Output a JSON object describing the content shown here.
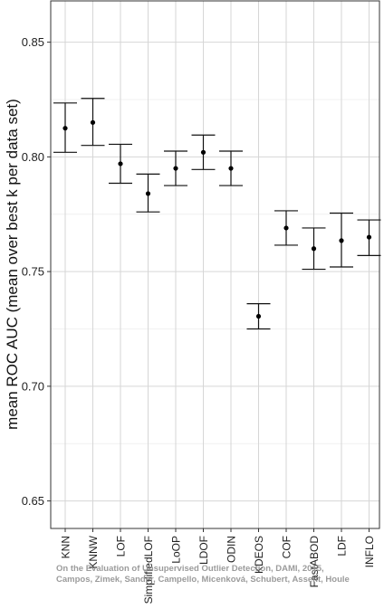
{
  "chart_data": {
    "type": "scatter",
    "ylabel": "mean ROC AUC (mean over best k per data set)",
    "ylim": [
      0.638,
      0.868
    ],
    "yticks": [
      "0.65",
      "0.70",
      "0.75",
      "0.80",
      "0.85"
    ],
    "grid": true,
    "categories": [
      "KNN",
      "KNNW",
      "LOF",
      "SimplifiedLOF",
      "LoOP",
      "LDOF",
      "ODIN",
      "KDEOS",
      "COF",
      "FastABOD",
      "LDF",
      "INFLO"
    ],
    "points": [
      {
        "label": "KNN",
        "mean": 0.8125,
        "lower": 0.802,
        "upper": 0.8235
      },
      {
        "label": "KNNW",
        "mean": 0.815,
        "lower": 0.805,
        "upper": 0.8255
      },
      {
        "label": "LOF",
        "mean": 0.797,
        "lower": 0.7885,
        "upper": 0.8055
      },
      {
        "label": "SimplifiedLOF",
        "mean": 0.784,
        "lower": 0.776,
        "upper": 0.7925
      },
      {
        "label": "LoOP",
        "mean": 0.795,
        "lower": 0.7875,
        "upper": 0.8025
      },
      {
        "label": "LDOF",
        "mean": 0.802,
        "lower": 0.7945,
        "upper": 0.8095
      },
      {
        "label": "ODIN",
        "mean": 0.795,
        "lower": 0.7875,
        "upper": 0.8025
      },
      {
        "label": "KDEOS",
        "mean": 0.7305,
        "lower": 0.725,
        "upper": 0.736
      },
      {
        "label": "COF",
        "mean": 0.769,
        "lower": 0.7615,
        "upper": 0.7765
      },
      {
        "label": "FastABOD",
        "mean": 0.76,
        "lower": 0.751,
        "upper": 0.769
      },
      {
        "label": "LDF",
        "mean": 0.7635,
        "lower": 0.752,
        "upper": 0.7755
      },
      {
        "label": "INFLO",
        "mean": 0.765,
        "lower": 0.757,
        "upper": 0.7725
      }
    ],
    "annotations": [
      "On the Evaluation of Unsupervised Outlier Detection, DAMI, 2015,",
      "Campos, Zimek, Sander, Campello, Micenková, Schubert, Assent, Houle"
    ]
  }
}
